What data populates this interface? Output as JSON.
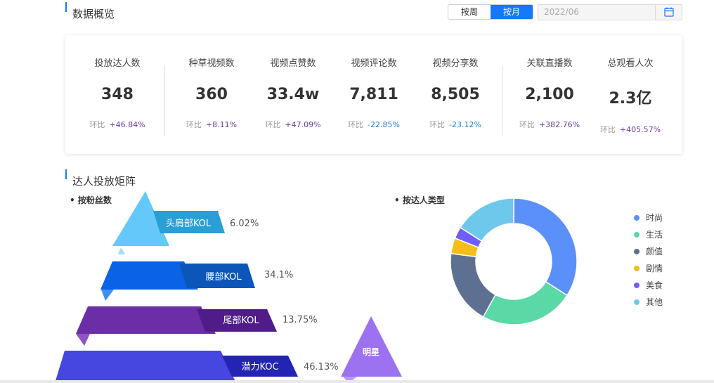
{
  "overview": {
    "title": "数据概览",
    "toggle": {
      "week": "按周",
      "month": "按月"
    },
    "date_value": "2022/06",
    "compare_label": "环比",
    "metrics": [
      {
        "label": "投放达人数",
        "value": "348",
        "change": "+46.84%",
        "trend": "up"
      },
      {
        "label": "种草视频数",
        "value": "360",
        "change": "+8.11%",
        "trend": "up"
      },
      {
        "label": "视频点赞数",
        "value": "33.4w",
        "change": "+47.09%",
        "trend": "up"
      },
      {
        "label": "视频评论数",
        "value": "7,811",
        "change": "-22.85%",
        "trend": "down"
      },
      {
        "label": "视频分享数",
        "value": "8,505",
        "change": "-23.12%",
        "trend": "down"
      },
      {
        "label": "关联直播数",
        "value": "2,100",
        "change": "+382.76%",
        "trend": "up"
      },
      {
        "label": "总观看人次",
        "value": "2.3亿",
        "change": "+405.57%",
        "trend": "up"
      }
    ]
  },
  "matrix": {
    "title": "达人投放矩阵",
    "by_fans_title": "按粉丝数",
    "by_type_title": "按达人类型",
    "star_label": "明星",
    "colors": {
      "head": "#64c8fa",
      "head_tag": "#2a9fd6",
      "waist": "#0a62e6",
      "waist_tag": "#0b56b8",
      "tail": "#6b2ea6",
      "tail_tag": "#4f1c8a",
      "potential": "#4646e0",
      "potential_tag": "#2323b4",
      "star": "#9d72f0"
    },
    "tiers": [
      {
        "name": "头肩部KOL",
        "percent": 6.02,
        "percent_text": "6.02%"
      },
      {
        "name": "腰部KOL",
        "percent": 34.1,
        "percent_text": "34.1%"
      },
      {
        "name": "尾部KOL",
        "percent": 13.75,
        "percent_text": "13.75%"
      },
      {
        "name": "潜力KOC",
        "percent": 46.13,
        "percent_text": "46.13%"
      }
    ]
  },
  "chart_data": {
    "type": "pie",
    "variant": "donut",
    "title": "按达人类型",
    "legend_position": "right",
    "categories": [
      "时尚",
      "生活",
      "颜值",
      "剧情",
      "美食",
      "其他"
    ],
    "values": [
      34,
      24,
      19,
      4,
      3,
      16
    ],
    "colors": [
      "#5b8ff9",
      "#5ad8a6",
      "#5d7092",
      "#f6bd16",
      "#6f5ef9",
      "#6dc8ec"
    ]
  }
}
